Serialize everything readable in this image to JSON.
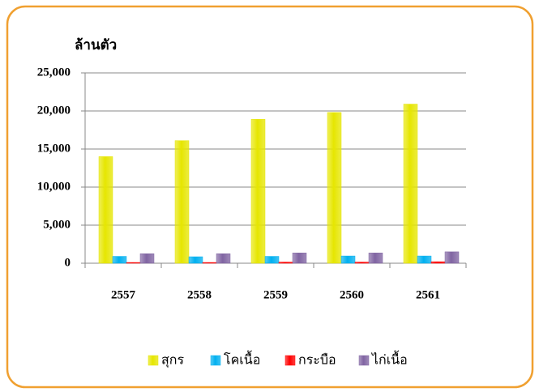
{
  "chart_data": {
    "type": "bar",
    "y_label": "ล้านตัว",
    "categories": [
      "2557",
      "2558",
      "2559",
      "2560",
      "2561"
    ],
    "series": [
      {
        "name": "สุกร",
        "color": "#e6e600",
        "values": [
          14000,
          16100,
          18900,
          19800,
          20900
        ]
      },
      {
        "name": "โคเนื้อ",
        "color": "#00b0f0",
        "values": [
          900,
          850,
          900,
          950,
          950
        ]
      },
      {
        "name": "กระบือ",
        "color": "#ff0000",
        "values": [
          100,
          100,
          150,
          150,
          200
        ]
      },
      {
        "name": "ไก่เนื้อ",
        "color": "#8064a2",
        "values": [
          1250,
          1250,
          1350,
          1350,
          1500
        ]
      }
    ],
    "ylim": [
      0,
      25000
    ],
    "yticks": [
      0,
      {
        "value": 5000,
        "label": "5,000"
      },
      {
        "value": 10000,
        "label": "10,000"
      },
      {
        "value": 15000,
        "label": "15,000"
      },
      {
        "value": 20000,
        "label": "20,000"
      },
      {
        "value": 25000,
        "label": "25,000"
      }
    ],
    "grid": true
  }
}
